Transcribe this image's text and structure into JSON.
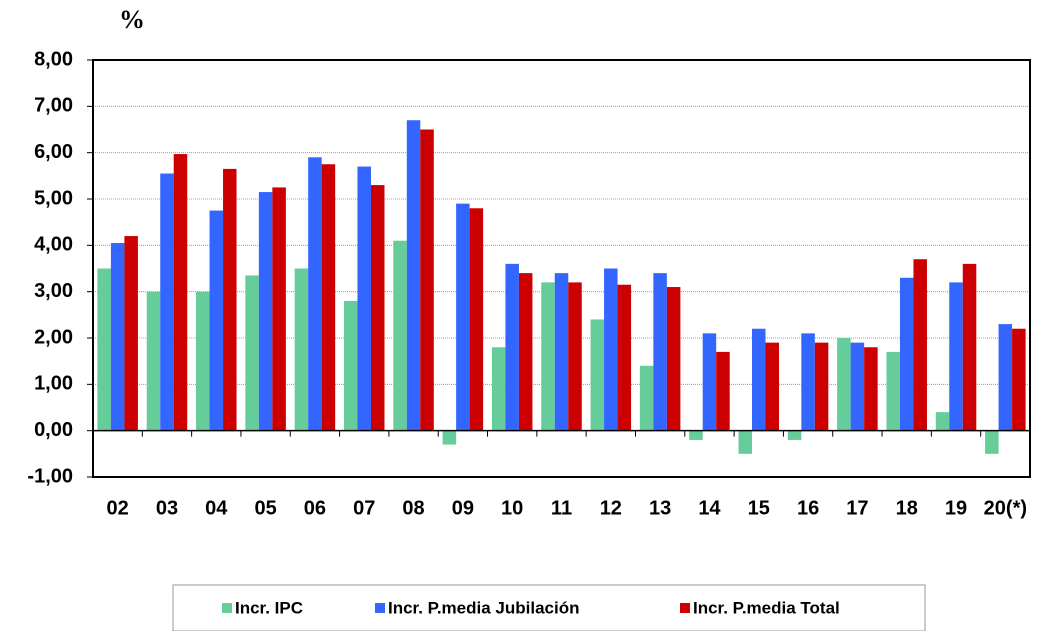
{
  "chart_data": {
    "type": "bar",
    "y_label": "%",
    "categories": [
      "02",
      "03",
      "04",
      "05",
      "06",
      "07",
      "08",
      "09",
      "10",
      "11",
      "12",
      "13",
      "14",
      "15",
      "16",
      "17",
      "18",
      "19",
      "20(*)"
    ],
    "series": [
      {
        "name": "Incr. IPC",
        "color": "#66cc99",
        "values": [
          3.5,
          3.0,
          3.0,
          3.35,
          3.5,
          2.8,
          4.1,
          -0.3,
          1.8,
          3.2,
          2.4,
          1.4,
          -0.2,
          -0.5,
          -0.2,
          2.0,
          1.7,
          0.4,
          -0.5
        ]
      },
      {
        "name": "Incr. P.media Jubilación",
        "color": "#3366ff",
        "values": [
          4.05,
          5.55,
          4.75,
          5.15,
          5.9,
          5.7,
          6.7,
          4.9,
          3.6,
          3.4,
          3.5,
          3.4,
          2.1,
          2.2,
          2.1,
          1.9,
          3.3,
          3.2,
          2.3
        ]
      },
      {
        "name": "Incr. P.media Total",
        "color": "#cc0000",
        "values": [
          4.2,
          5.97,
          5.65,
          5.25,
          5.75,
          5.3,
          6.5,
          4.8,
          3.4,
          3.2,
          3.15,
          3.1,
          1.7,
          1.9,
          1.9,
          1.8,
          3.7,
          3.6,
          2.2
        ]
      }
    ],
    "ylim": [
      -1,
      8
    ],
    "yticks": [
      {
        "value": -1,
        "label": "-1,00"
      },
      {
        "value": 0,
        "label": "0,00"
      },
      {
        "value": 1,
        "label": "1,00"
      },
      {
        "value": 2,
        "label": "2,00"
      },
      {
        "value": 3,
        "label": "3,00"
      },
      {
        "value": 4,
        "label": "4,00"
      },
      {
        "value": 5,
        "label": "5,00"
      },
      {
        "value": 6,
        "label": "6,00"
      },
      {
        "value": 7,
        "label": "7,00"
      },
      {
        "value": 8,
        "label": "8,00"
      }
    ],
    "grid": true,
    "legend": "bottom"
  }
}
